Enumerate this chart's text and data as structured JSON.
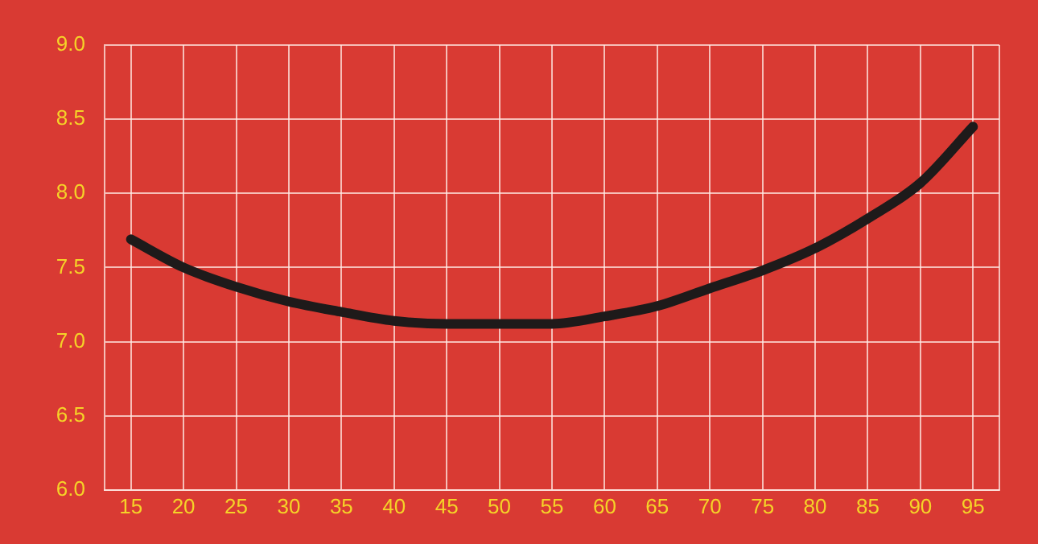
{
  "chart_data": {
    "type": "line",
    "x": [
      15,
      20,
      25,
      30,
      35,
      40,
      45,
      50,
      55,
      60,
      65,
      70,
      75,
      80,
      85,
      90,
      95
    ],
    "series": [
      {
        "color": "#1e1a1a",
        "values": [
          7.69,
          7.5,
          7.37,
          7.27,
          7.2,
          7.14,
          7.12,
          7.12,
          7.12,
          7.17,
          7.24,
          7.36,
          7.48,
          7.63,
          7.83,
          8.07,
          8.45
        ]
      }
    ],
    "xlim": [
      12.5,
      97.5
    ],
    "xticks": [
      15,
      20,
      25,
      30,
      35,
      40,
      45,
      50,
      55,
      60,
      65,
      70,
      75,
      80,
      85,
      90,
      95
    ],
    "ylim": [
      6,
      9
    ],
    "yticks": [
      {
        "value": 6,
        "label": "6.0"
      },
      6.5,
      {
        "value": 7,
        "label": "7.0"
      },
      7.5,
      {
        "value": 8,
        "label": "8.0"
      },
      8.5,
      {
        "value": 9,
        "label": "9.0"
      }
    ],
    "grid": true,
    "legend": false,
    "marker": "none",
    "line_style": "solid"
  }
}
